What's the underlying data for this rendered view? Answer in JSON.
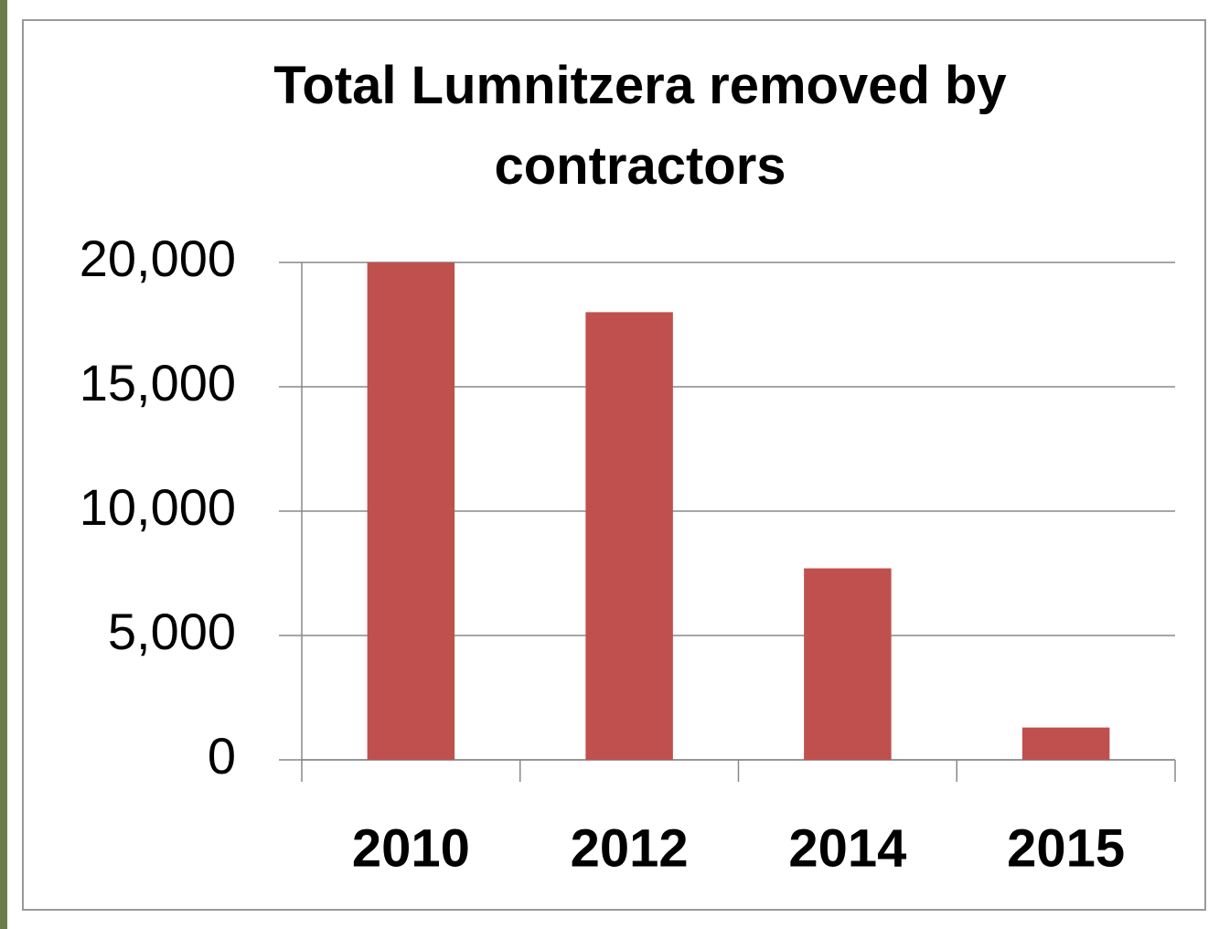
{
  "chart_data": {
    "type": "bar",
    "title": "Total Lumnitzera removed by contractors",
    "categories": [
      "2010",
      "2012",
      "2014",
      "2015"
    ],
    "values": [
      20000,
      18000,
      7700,
      1300
    ],
    "color": "#c0504d",
    "ylim": [
      0,
      20000
    ],
    "yticks": [
      0,
      {
        "value": 5000,
        "label": "5,000"
      },
      {
        "value": 10000,
        "label": "10,000"
      },
      {
        "value": 15000,
        "label": "15,000"
      },
      {
        "value": 20000,
        "label": "20,000"
      }
    ],
    "grid": true
  }
}
